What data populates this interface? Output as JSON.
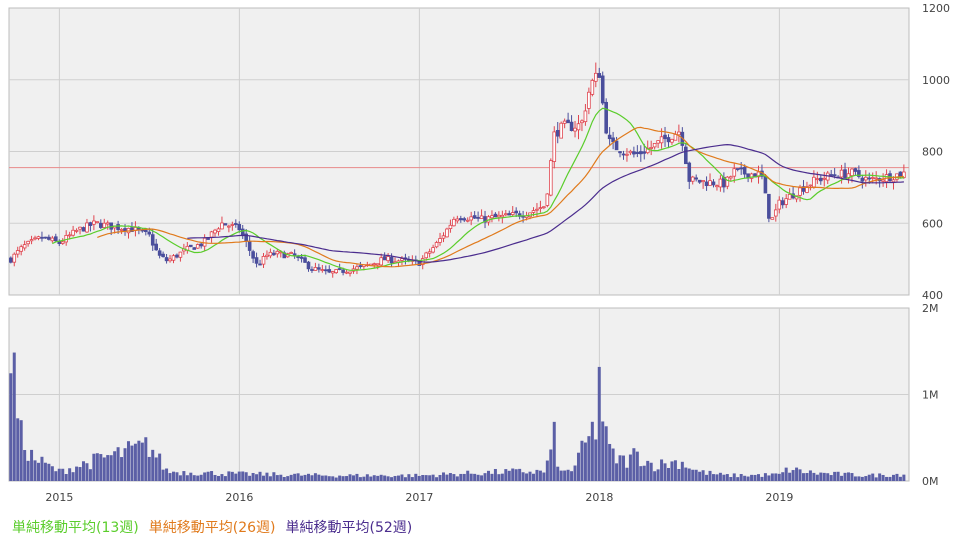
{
  "chart_data": {
    "type": "candlestick",
    "x_ticks": [
      "2015",
      "2016",
      "2017",
      "2018",
      "2019"
    ],
    "price_axis": {
      "ylim": [
        400,
        1200
      ],
      "ticks": [
        "1200",
        "1000",
        "800",
        "600",
        "400"
      ]
    },
    "volume_axis": {
      "ylim": [
        0,
        2000000
      ],
      "ticks": [
        "2M",
        "1M",
        "0M"
      ]
    },
    "reference_price": 755,
    "colors": {
      "up": "#e0454f",
      "down": "#4a4e9c",
      "volume": "#5b5fa6",
      "ma13": "#5acd2b",
      "ma26": "#e07a1c",
      "ma52": "#4b2d8e",
      "reference": "#e88a8a",
      "grid": "#cfcfcf",
      "panel": "#f0f0f0"
    },
    "anchors": {
      "x": [
        2014.73,
        2014.8,
        2014.9,
        2015.0,
        2015.1,
        2015.2,
        2015.3,
        2015.4,
        2015.5,
        2015.55,
        2015.6,
        2015.7,
        2015.8,
        2015.9,
        2016.0,
        2016.1,
        2016.15,
        2016.2,
        2016.3,
        2016.4,
        2016.5,
        2016.6,
        2016.7,
        2016.8,
        2016.9,
        2017.0,
        2017.1,
        2017.15,
        2017.2,
        2017.3,
        2017.35,
        2017.4,
        2017.5,
        2017.6,
        2017.7,
        2017.75,
        2017.8,
        2017.85,
        2017.9,
        2017.95,
        2018.0,
        2018.03,
        2018.06,
        2018.1,
        2018.15,
        2018.2,
        2018.3,
        2018.4,
        2018.45,
        2018.5,
        2018.6,
        2018.7,
        2018.75,
        2018.8,
        2018.9,
        2018.95,
        2019.0,
        2019.1,
        2019.2,
        2019.3,
        2019.4,
        2019.5,
        2019.6,
        2019.7
      ],
      "close": [
        500,
        535,
        560,
        545,
        580,
        600,
        590,
        585,
        565,
        510,
        495,
        525,
        545,
        600,
        585,
        480,
        510,
        515,
        510,
        475,
        460,
        470,
        480,
        500,
        495,
        490,
        545,
        580,
        620,
        615,
        610,
        615,
        620,
        630,
        650,
        850,
        870,
        870,
        875,
        985,
        1020,
        880,
        820,
        810,
        800,
        790,
        815,
        845,
        860,
        720,
        715,
        710,
        745,
        740,
        735,
        600,
        655,
        690,
        720,
        735,
        740,
        720,
        730,
        740
      ]
    },
    "volume_anchors": {
      "x": [
        2014.73,
        2014.78,
        2014.85,
        2015.0,
        2015.25,
        2015.5,
        2015.6,
        2016.0,
        2016.5,
        2017.0,
        2017.5,
        2017.7,
        2017.75,
        2017.78,
        2017.85,
        2017.98,
        2018.0,
        2018.02,
        2018.04,
        2018.08,
        2018.15,
        2018.2,
        2018.3,
        2018.45,
        2018.55,
        2018.7,
        2019.0,
        2019.05,
        2019.2,
        2019.5,
        2019.7
      ],
      "values": [
        1750000,
        600000,
        300000,
        120000,
        300000,
        450000,
        120000,
        90000,
        70000,
        70000,
        120000,
        120000,
        560000,
        100000,
        150000,
        700000,
        1400000,
        800000,
        500000,
        300000,
        250000,
        350000,
        200000,
        250000,
        120000,
        70000,
        80000,
        150000,
        100000,
        70000,
        90000
      ]
    },
    "series": [
      {
        "name": "単純移動平均(13週)"
      },
      {
        "name": "単純移動平均(26週)"
      },
      {
        "name": "単純移動平均(52週)"
      }
    ]
  }
}
